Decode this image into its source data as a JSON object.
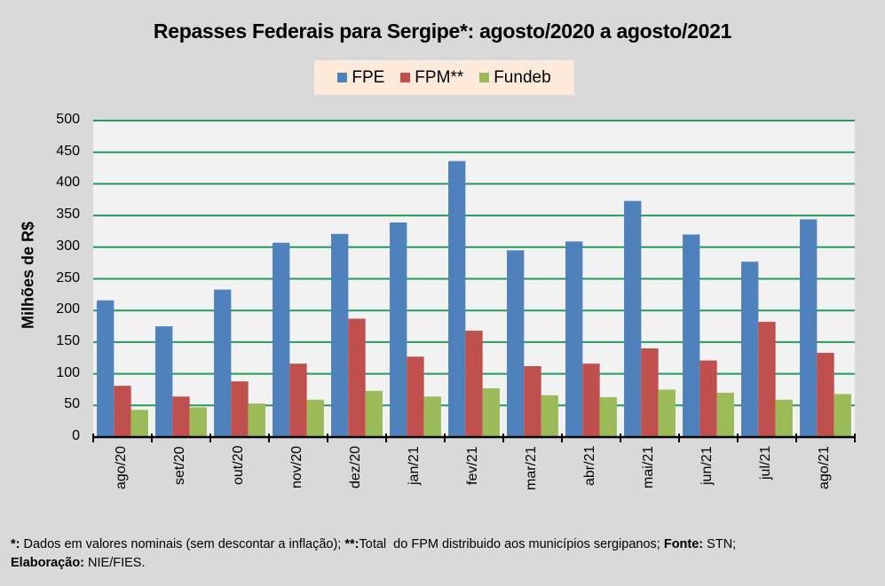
{
  "chart_data": {
    "type": "bar",
    "title": "Repasses Federais para Sergipe*: agosto/2020 a agosto/2021",
    "xlabel": "",
    "ylabel": "Milhões de R$",
    "ylim": [
      0,
      500
    ],
    "yticks": [
      0,
      50,
      100,
      150,
      200,
      250,
      300,
      350,
      400,
      450,
      500
    ],
    "grid": true,
    "legend_position": "top-center",
    "categories": [
      "ago/20",
      "set/20",
      "out/20",
      "nov/20",
      "dez/20",
      "jan/21",
      "fev/21",
      "mar/21",
      "abr/21",
      "mai/21",
      "jun/21",
      "jul/21",
      "ago/21"
    ],
    "series": [
      {
        "name": "FPE",
        "color": "#4f81bd",
        "values": [
          216,
          175,
          233,
          307,
          321,
          339,
          436,
          295,
          309,
          373,
          320,
          277,
          344
        ]
      },
      {
        "name": "FPM**",
        "color": "#c0504d",
        "values": [
          81,
          64,
          88,
          116,
          187,
          127,
          168,
          112,
          116,
          140,
          121,
          182,
          133
        ]
      },
      {
        "name": "Fundeb",
        "color": "#9bbb59",
        "values": [
          43,
          47,
          53,
          59,
          73,
          64,
          77,
          66,
          63,
          75,
          70,
          59,
          68
        ]
      }
    ],
    "gridline_color": "#239c5a",
    "plot_background": "#f2f2f2"
  },
  "footnote": {
    "line1": [
      {
        "text": "*:",
        "bold": true
      },
      {
        "text": " Dados em valores nominais (sem descontar a inflação); ",
        "bold": false
      },
      {
        "text": "**:",
        "bold": true
      },
      {
        "text": "Total  do FPM distribuido aos municípios sergipanos; ",
        "bold": false
      },
      {
        "text": "Fonte:",
        "bold": true
      },
      {
        "text": " STN;",
        "bold": false
      }
    ],
    "line2": [
      {
        "text": "Elaboração:",
        "bold": true
      },
      {
        "text": " NIE/FIES.",
        "bold": false
      }
    ]
  }
}
